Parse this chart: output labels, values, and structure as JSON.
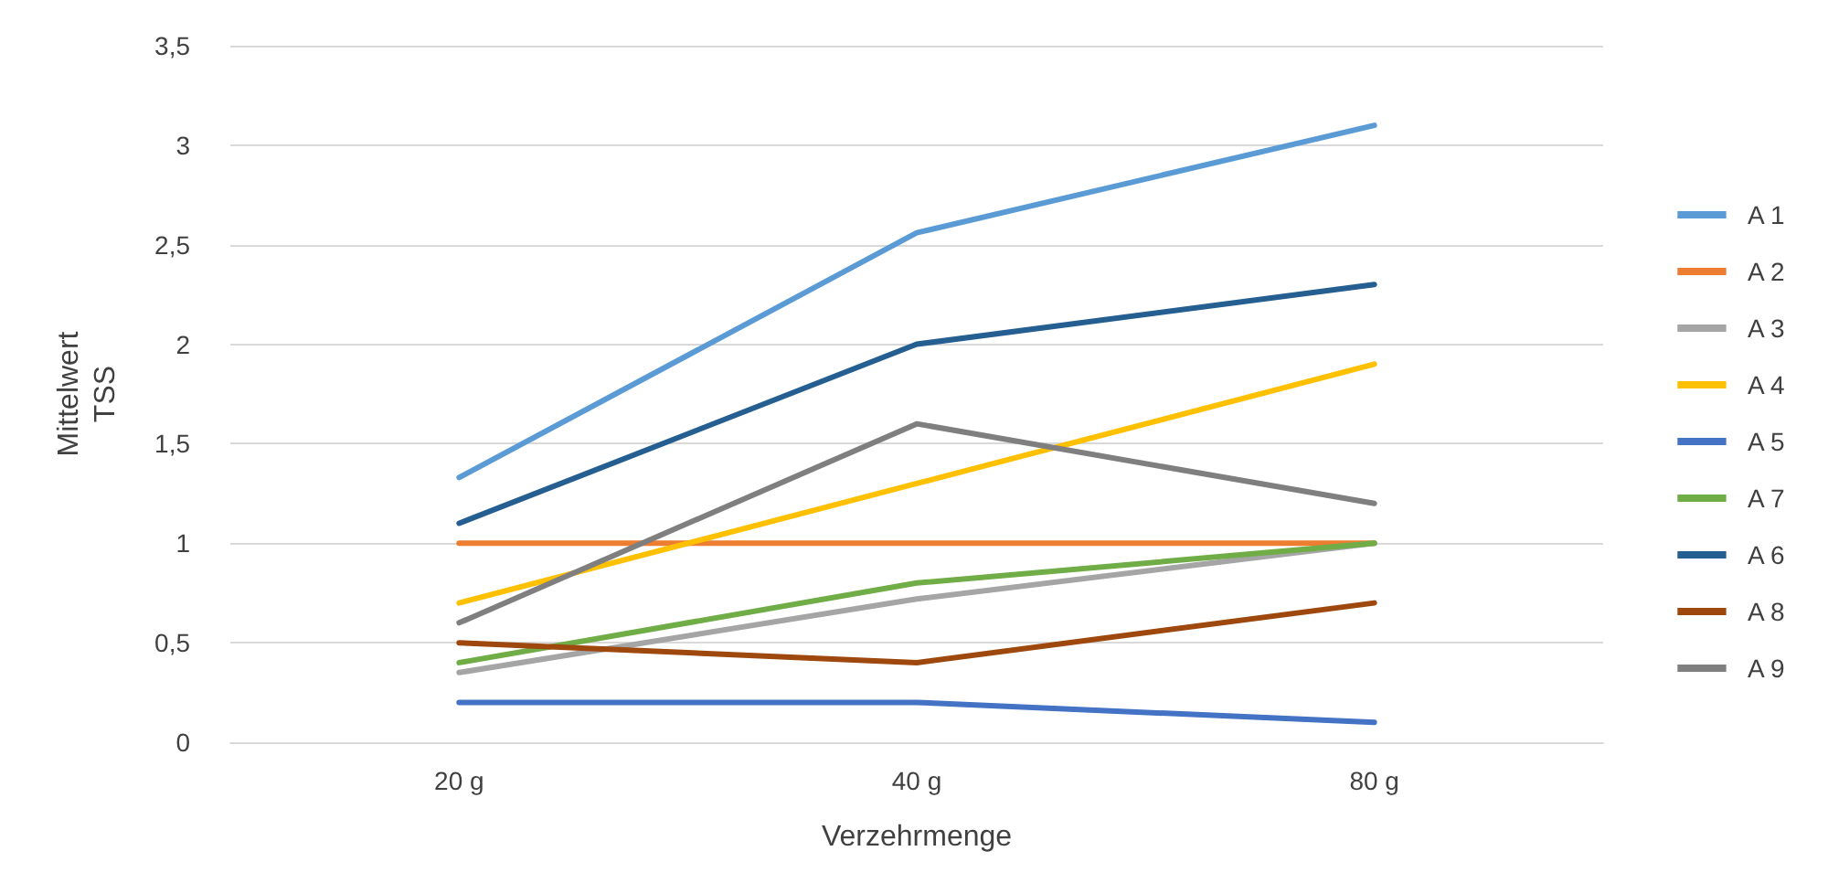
{
  "chart_data": {
    "type": "line",
    "xlabel": "Verzehrmenge",
    "ylabel": "Mittelwert\nTSS",
    "categories": [
      "20 g",
      "40 g",
      "80 g"
    ],
    "ylim": [
      0,
      3.5
    ],
    "yticks": [
      0,
      {
        "value": 0.5,
        "label": "0,5"
      },
      1,
      {
        "value": 1.5,
        "label": "1,5"
      },
      2,
      {
        "value": 2.5,
        "label": "2,5"
      },
      3,
      {
        "value": 3.5,
        "label": "3,5"
      }
    ],
    "grid": "y",
    "legend": "right",
    "marker": "none",
    "line_style": "solid",
    "series": [
      {
        "name": "A 1",
        "color": "#5b9bd5",
        "values": [
          1.33,
          2.56,
          3.1
        ]
      },
      {
        "name": "A 2",
        "color": "#ed7d31",
        "values": [
          1,
          1,
          1
        ]
      },
      {
        "name": "A 3",
        "color": "#a5a5a5",
        "values": [
          0.35,
          0.72,
          1
        ]
      },
      {
        "name": "A 4",
        "color": "#ffc000",
        "values": [
          0.7,
          1.3,
          1.9
        ]
      },
      {
        "name": "A 5",
        "color": "#4472c4",
        "values": [
          0.2,
          0.2,
          0.1
        ]
      },
      {
        "name": "A 7",
        "color": "#70ad47",
        "values": [
          0.4,
          0.8,
          1
        ]
      },
      {
        "name": "A 6",
        "color": "#255e91",
        "values": [
          1.1,
          2,
          2.3
        ]
      },
      {
        "name": "A 8",
        "color": "#9e480e",
        "values": [
          0.5,
          0.4,
          0.7
        ]
      },
      {
        "name": "A 9",
        "color": "#7f7f7f",
        "values": [
          0.6,
          1.6,
          1.2
        ]
      }
    ]
  }
}
